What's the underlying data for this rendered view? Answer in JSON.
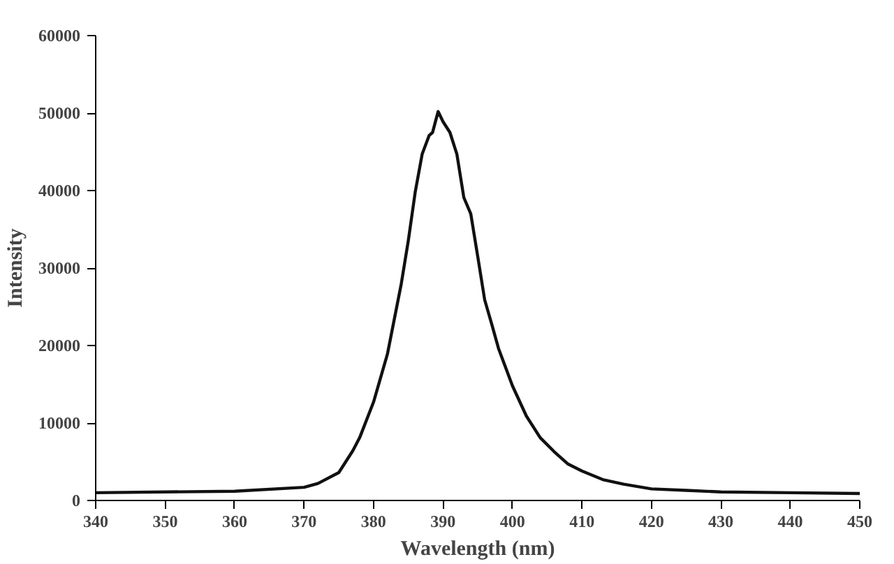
{
  "chart_data": {
    "type": "line",
    "xlabel": "Wavelength (nm)",
    "ylabel": "Intensity",
    "x": [
      340,
      360,
      370,
      372,
      375,
      377,
      378,
      380,
      382,
      384,
      385,
      386,
      387,
      388,
      388.5,
      389,
      389.3,
      390,
      391,
      392,
      393,
      394,
      395,
      396,
      397,
      398,
      400,
      402,
      404,
      406,
      408,
      410,
      413,
      416,
      420,
      425,
      430,
      440,
      450
    ],
    "series": [
      {
        "color": "#111111",
        "values": [
          1000,
          1200,
          1700,
          2200,
          3600,
          6400,
          8100,
          12700,
          18900,
          28000,
          33500,
          39800,
          44700,
          47100,
          47500,
          49200,
          50200,
          48900,
          47500,
          44700,
          39100,
          37000,
          31500,
          25900,
          22800,
          19600,
          14800,
          10900,
          8100,
          6300,
          4700,
          3800,
          2700,
          2100,
          1500,
          1300,
          1100,
          1000,
          900
        ]
      }
    ],
    "xlim": [
      340,
      450
    ],
    "xticks": [
      340,
      350,
      360,
      370,
      380,
      390,
      400,
      410,
      420,
      430,
      440,
      450
    ],
    "ylim": [
      0,
      60000
    ],
    "yticks": [
      0,
      10000,
      20000,
      30000,
      40000,
      50000,
      60000
    ],
    "grid": false,
    "marker": "none",
    "line_style": "solid"
  }
}
